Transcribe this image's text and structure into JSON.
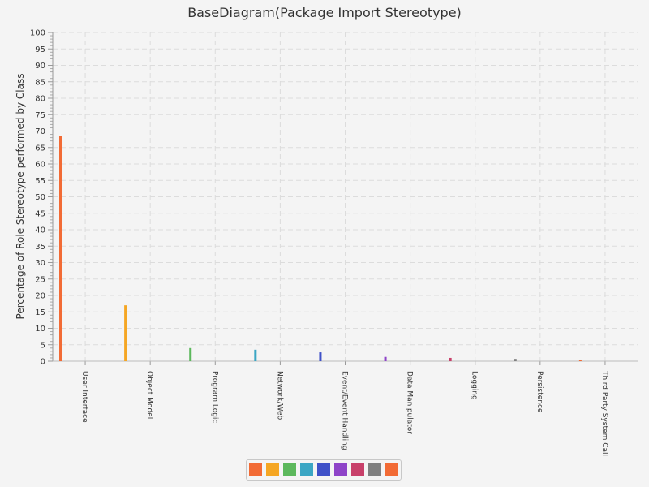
{
  "chart_data": {
    "type": "bar",
    "title": "BaseDiagram(Package Import Stereotype)",
    "xlabel": "",
    "ylabel": "Percentage of Role Stereotype performed by Class",
    "ylim": [
      0,
      100
    ],
    "yticks": [
      0,
      5,
      10,
      15,
      20,
      25,
      30,
      35,
      40,
      45,
      50,
      55,
      60,
      65,
      70,
      75,
      80,
      85,
      90,
      95,
      100
    ],
    "grid": true,
    "legend_position": "bottom",
    "categories": [
      "User Interface",
      "Object Model",
      "Program Logic",
      "Network/Web",
      "Event/Event Handling",
      "Data Manipulator",
      "Logging",
      "Persistence",
      "Third Party System Call"
    ],
    "values": [
      68.5,
      17,
      4,
      3.5,
      2.7,
      1.3,
      1,
      0.7,
      0.3
    ],
    "colors": [
      "#f26b35",
      "#f5a623",
      "#5cb85c",
      "#3ba6c4",
      "#3f51c8",
      "#8e44c8",
      "#c8406a",
      "#808080",
      "#f26b35"
    ],
    "legend_colors": [
      "#f26b35",
      "#f5a623",
      "#5cb85c",
      "#3ba6c4",
      "#3f51c8",
      "#8e44c8",
      "#c8406a",
      "#808080",
      "#f26b35"
    ]
  }
}
